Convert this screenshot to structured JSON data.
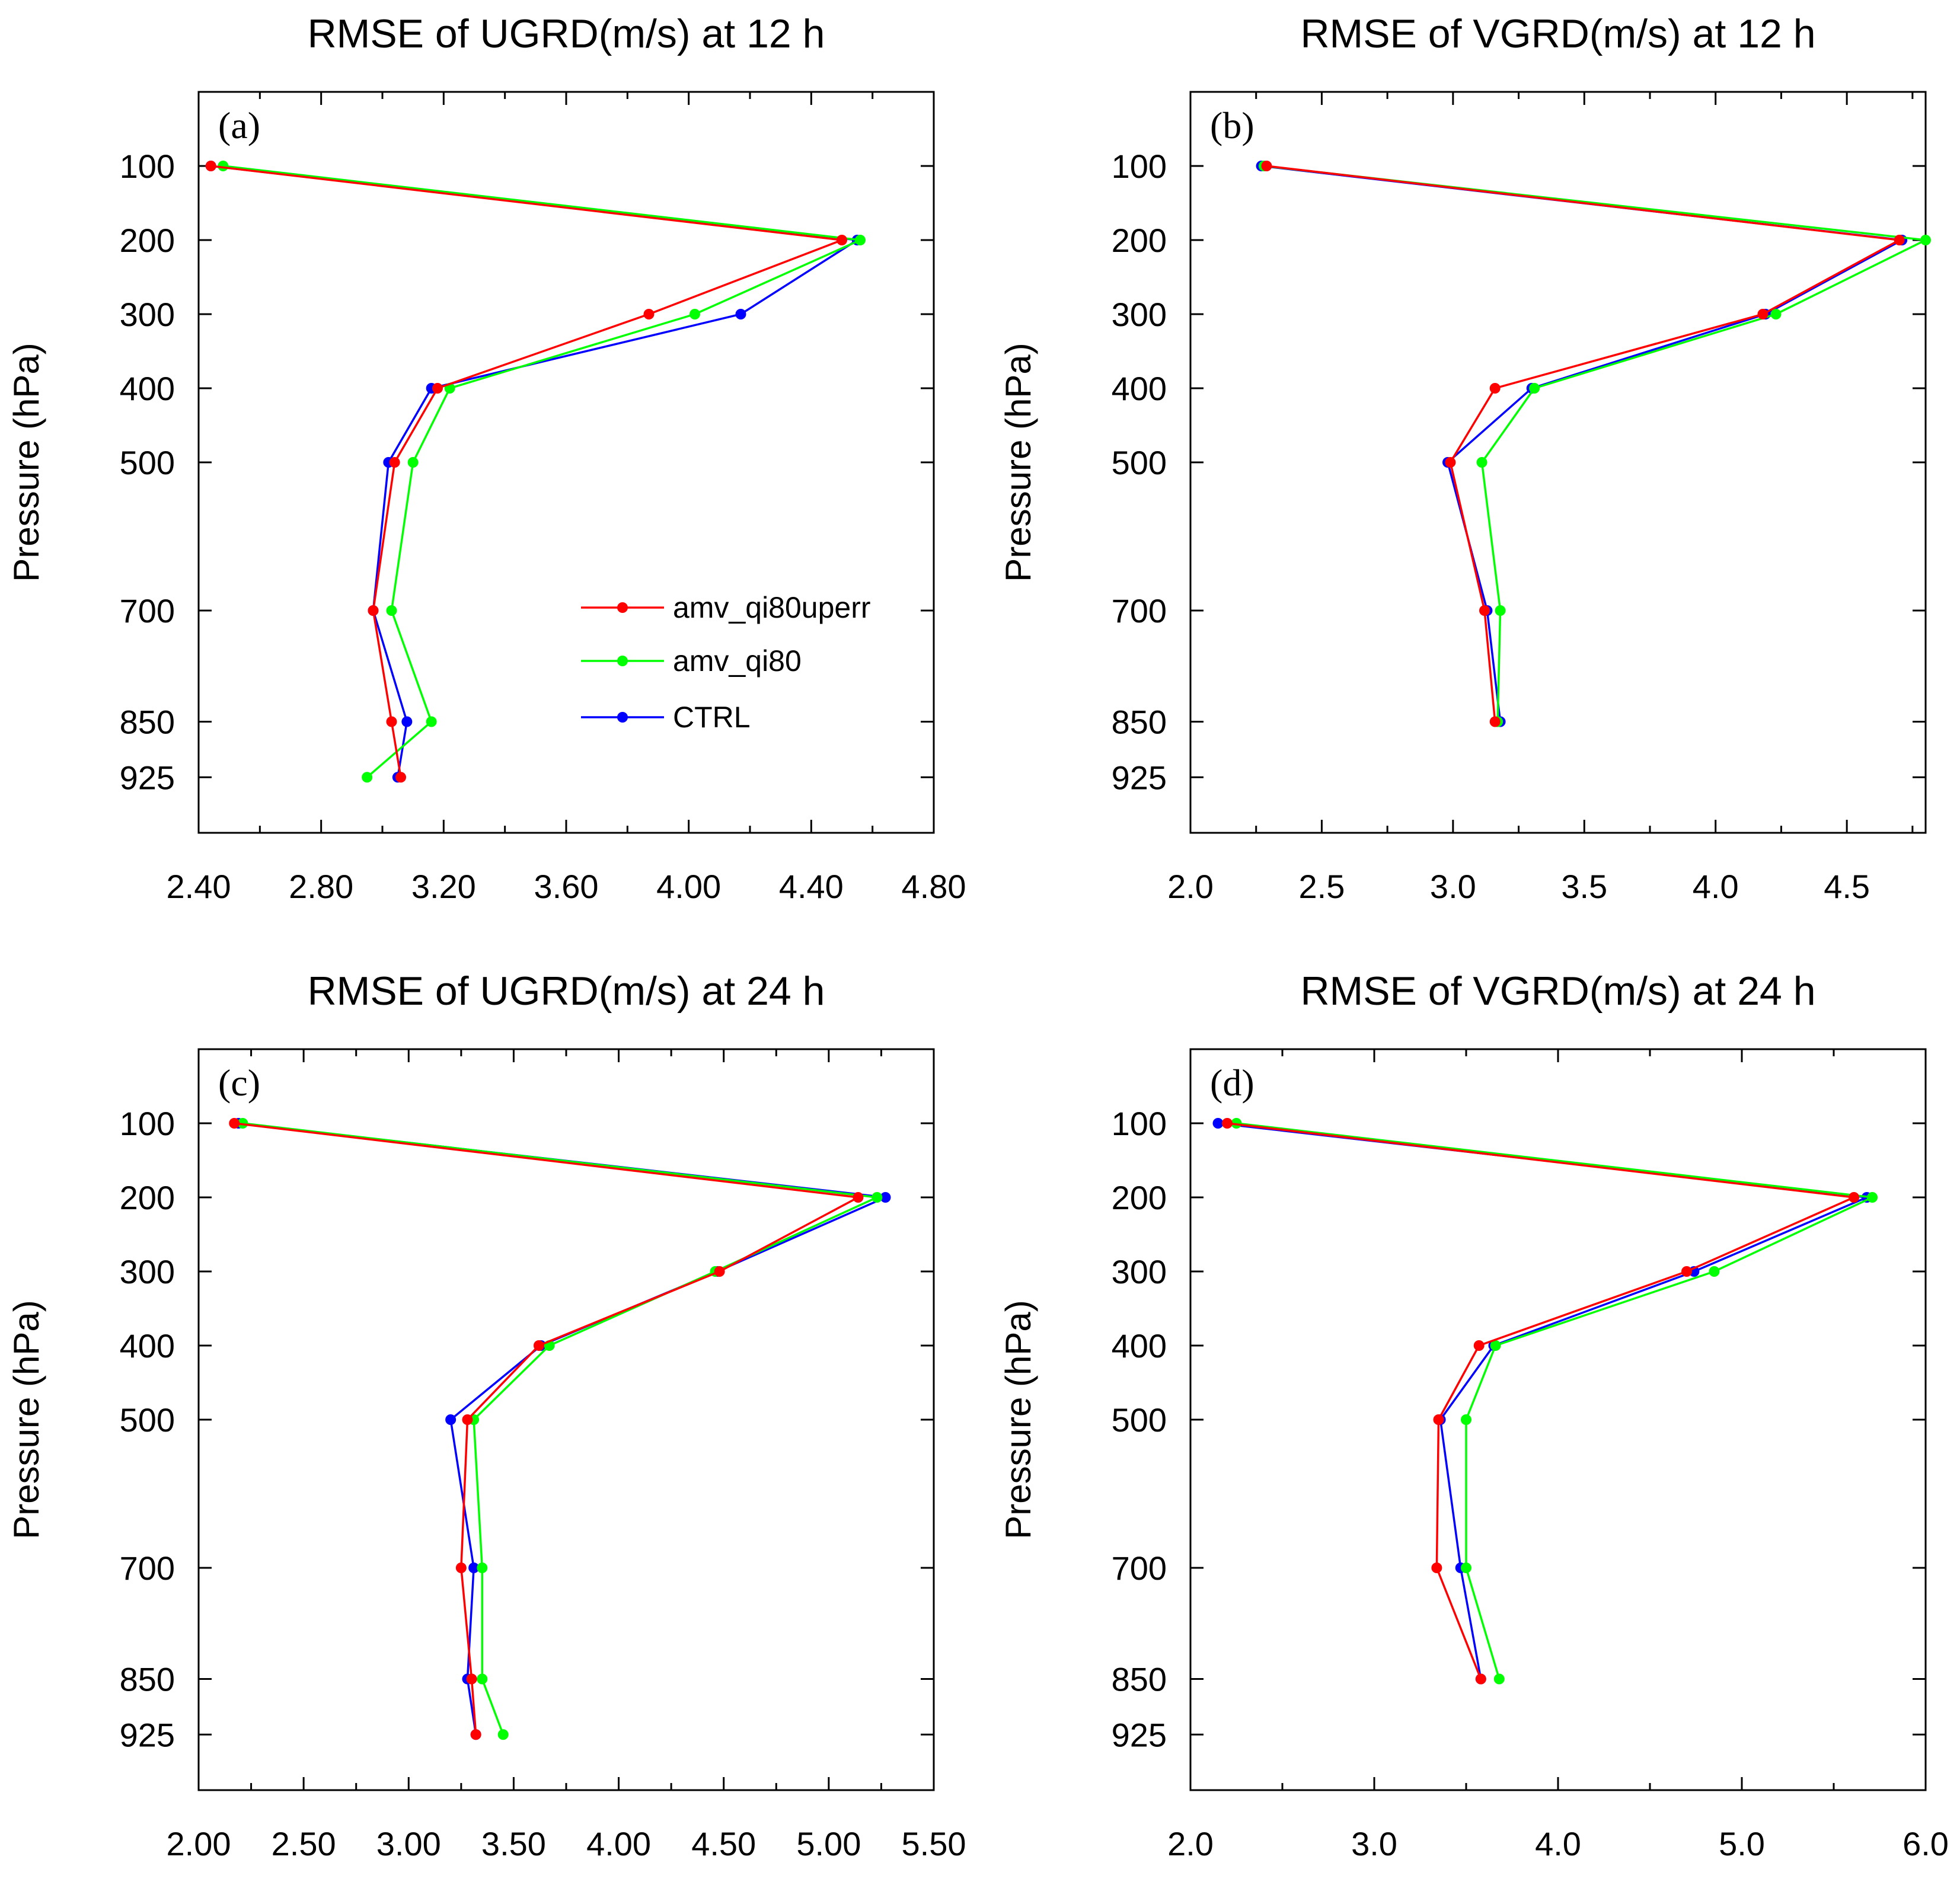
{
  "chart_data": [
    {
      "panel": "(a)",
      "type": "line",
      "title": "RMSE of UGRD(m/s) at 12 h",
      "ylabel": "Pressure (hPa)",
      "xlabel": "",
      "xlim": [
        2.4,
        4.8
      ],
      "xticks": [
        2.4,
        2.8,
        3.2,
        3.6,
        4.0,
        4.4,
        4.8
      ],
      "xtick_labels": [
        "2.40",
        "2.80",
        "3.20",
        "3.60",
        "4.00",
        "4.40",
        "4.80"
      ],
      "ylim": [
        0,
        1000
      ],
      "levels": [
        100,
        200,
        300,
        400,
        500,
        700,
        850,
        925
      ],
      "ytick_labels": [
        "100",
        "200",
        "300",
        "400",
        "500",
        "700",
        "850",
        "925"
      ],
      "legend": "inside right",
      "series": [
        {
          "name": "amv_qi80uperr",
          "color": "#ff0000",
          "values": [
            2.44,
            4.5,
            3.87,
            3.18,
            3.04,
            2.97,
            3.03,
            3.06
          ]
        },
        {
          "name": "amv_qi80",
          "color": "#00ff00",
          "values": [
            2.48,
            4.56,
            4.02,
            3.22,
            3.1,
            3.03,
            3.16,
            2.95
          ]
        },
        {
          "name": "CTRL",
          "color": "#0000ff",
          "values": [
            2.44,
            4.55,
            4.17,
            3.16,
            3.02,
            2.97,
            3.08,
            3.05
          ]
        }
      ]
    },
    {
      "panel": "(b)",
      "type": "line",
      "title": "RMSE of VGRD(m/s) at 12 h",
      "ylabel": "Pressure (hPa)",
      "xlabel": "",
      "xlim": [
        2.0,
        4.8
      ],
      "xticks": [
        2.0,
        2.5,
        3.0,
        3.5,
        4.0,
        4.5
      ],
      "xtick_labels": [
        "2.0",
        "2.5",
        "3.0",
        "3.5",
        "4.0",
        "4.5"
      ],
      "ylim": [
        0,
        1000
      ],
      "levels": [
        100,
        200,
        300,
        400,
        500,
        700,
        850,
        925
      ],
      "ytick_labels": [
        "100",
        "200",
        "300",
        "400",
        "500",
        "700",
        "850",
        "925"
      ],
      "series": [
        {
          "name": "amv_qi80uperr",
          "color": "#ff0000",
          "values": [
            2.29,
            4.7,
            4.18,
            3.16,
            2.99,
            3.12,
            3.16,
            null
          ]
        },
        {
          "name": "amv_qi80",
          "color": "#00ff00",
          "values": [
            2.28,
            4.8,
            4.23,
            3.31,
            3.11,
            3.18,
            3.17,
            null
          ]
        },
        {
          "name": "CTRL",
          "color": "#0000ff",
          "values": [
            2.27,
            4.71,
            4.19,
            3.3,
            2.98,
            3.13,
            3.18,
            null
          ]
        }
      ]
    },
    {
      "panel": "(c)",
      "type": "line",
      "title": "RMSE of UGRD(m/s) at 24 h",
      "ylabel": "Pressure (hPa)",
      "xlabel": "",
      "xlim": [
        2.0,
        5.5
      ],
      "xticks": [
        2.0,
        2.5,
        3.0,
        3.5,
        4.0,
        4.5,
        5.0,
        5.5
      ],
      "xtick_labels": [
        "2.00",
        "2.50",
        "3.00",
        "3.50",
        "4.00",
        "4.50",
        "5.00",
        "5.50"
      ],
      "ylim": [
        0,
        1000
      ],
      "levels": [
        100,
        200,
        300,
        400,
        500,
        700,
        850,
        925
      ],
      "ytick_labels": [
        "100",
        "200",
        "300",
        "400",
        "500",
        "700",
        "850",
        "925"
      ],
      "series": [
        {
          "name": "amv_qi80uperr",
          "color": "#ff0000",
          "values": [
            2.17,
            5.14,
            4.48,
            3.62,
            3.28,
            3.25,
            3.3,
            3.32
          ]
        },
        {
          "name": "amv_qi80",
          "color": "#00ff00",
          "values": [
            2.21,
            5.23,
            4.46,
            3.67,
            3.31,
            3.35,
            3.35,
            3.45
          ]
        },
        {
          "name": "CTRL",
          "color": "#0000ff",
          "values": [
            2.19,
            5.27,
            4.47,
            3.63,
            3.2,
            3.31,
            3.28,
            3.32
          ]
        }
      ]
    },
    {
      "panel": "(d)",
      "type": "line",
      "title": "RMSE of VGRD(m/s) at 24 h",
      "ylabel": "Pressure (hPa)",
      "xlabel": "",
      "xlim": [
        2.0,
        6.0
      ],
      "xticks": [
        2.0,
        3.0,
        4.0,
        5.0,
        6.0
      ],
      "xtick_labels": [
        "2.0",
        "3.0",
        "4.0",
        "5.0",
        "6.0"
      ],
      "ylim": [
        0,
        1000
      ],
      "levels": [
        100,
        200,
        300,
        400,
        500,
        700,
        850,
        925
      ],
      "ytick_labels": [
        "100",
        "200",
        "300",
        "400",
        "500",
        "700",
        "850",
        "925"
      ],
      "series": [
        {
          "name": "amv_qi80uperr",
          "color": "#ff0000",
          "values": [
            2.2,
            5.61,
            4.7,
            3.57,
            3.35,
            3.34,
            3.58,
            null
          ]
        },
        {
          "name": "amv_qi80",
          "color": "#00ff00",
          "values": [
            2.25,
            5.71,
            4.85,
            3.66,
            3.5,
            3.5,
            3.68,
            null
          ]
        },
        {
          "name": "CTRL",
          "color": "#0000ff",
          "values": [
            2.15,
            5.68,
            4.74,
            3.65,
            3.36,
            3.47,
            3.58,
            null
          ]
        }
      ]
    }
  ]
}
